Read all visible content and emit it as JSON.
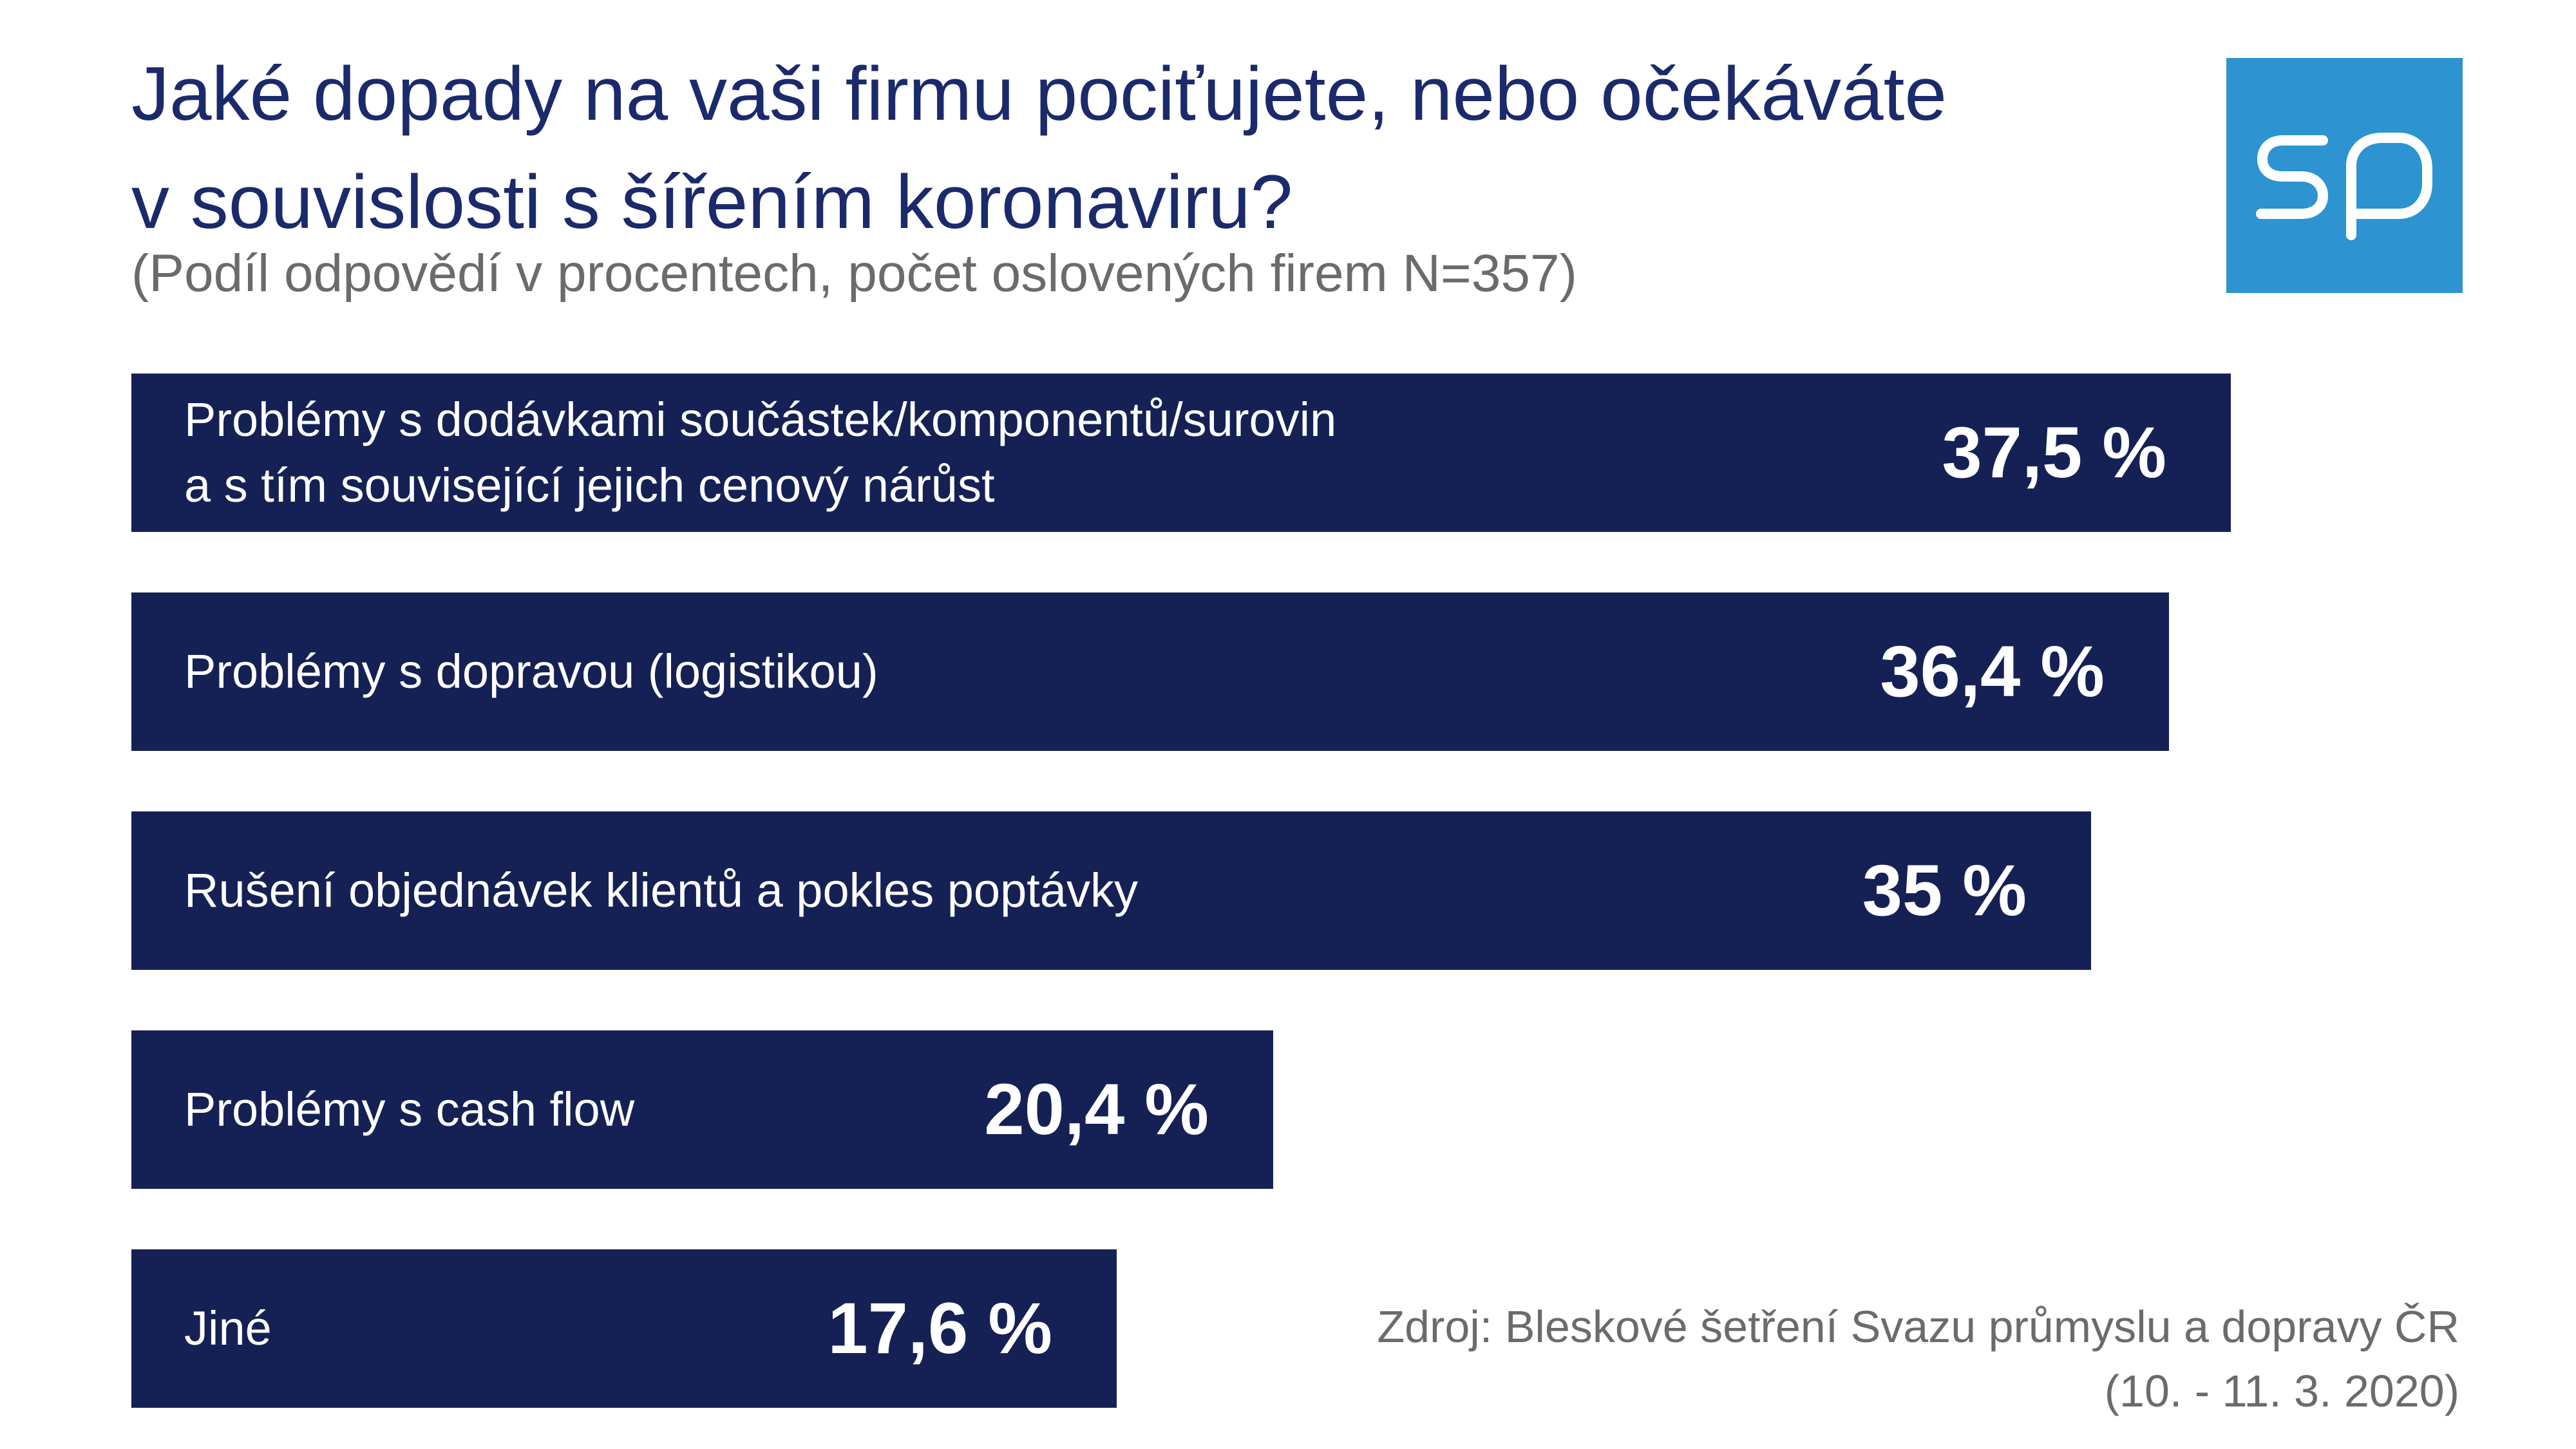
{
  "title_line1": "Jaké dopady na vaši firmu pociťujete, nebo očekáváte",
  "title_line2": "v souvislosti s šířením koronaviru?",
  "subtitle": "(Podíl odpovědí v procentech, počet oslovených firem N=357)",
  "logo": {
    "text": "sp",
    "background_color": "#2d93d1"
  },
  "colors": {
    "bar": "#152155",
    "title": "#1b2a6b",
    "muted_text": "#6b6b6b"
  },
  "chart_data": {
    "type": "bar",
    "orientation": "horizontal",
    "title": "Jaké dopady na vaši firmu pociťujete, nebo očekáváte v souvislosti s šířením koronaviru?",
    "subtitle": "(Podíl odpovědí v procentech, počet oslovených firem N=357)",
    "categories": [
      "Problémy s dodávkami součástek/komponentů/surovin\na s tím související jejich cenový nárůst",
      "Problémy s dopravou (logistikou)",
      "Rušení objednávek klientů a pokles poptávky",
      "Problémy s cash flow",
      "Jiné"
    ],
    "values": [
      37.5,
      36.4,
      35,
      20.4,
      17.6
    ],
    "value_labels": [
      "37,5 %",
      "36,4 %",
      "35 %",
      "20,4 %",
      "17,6 %"
    ],
    "unit": "%",
    "grid": false,
    "legend": "none"
  },
  "source": {
    "line1": "Zdroj: Bleskové šetření Svazu průmyslu a dopravy ČR",
    "line2": "(10. - 11. 3. 2020)"
  }
}
